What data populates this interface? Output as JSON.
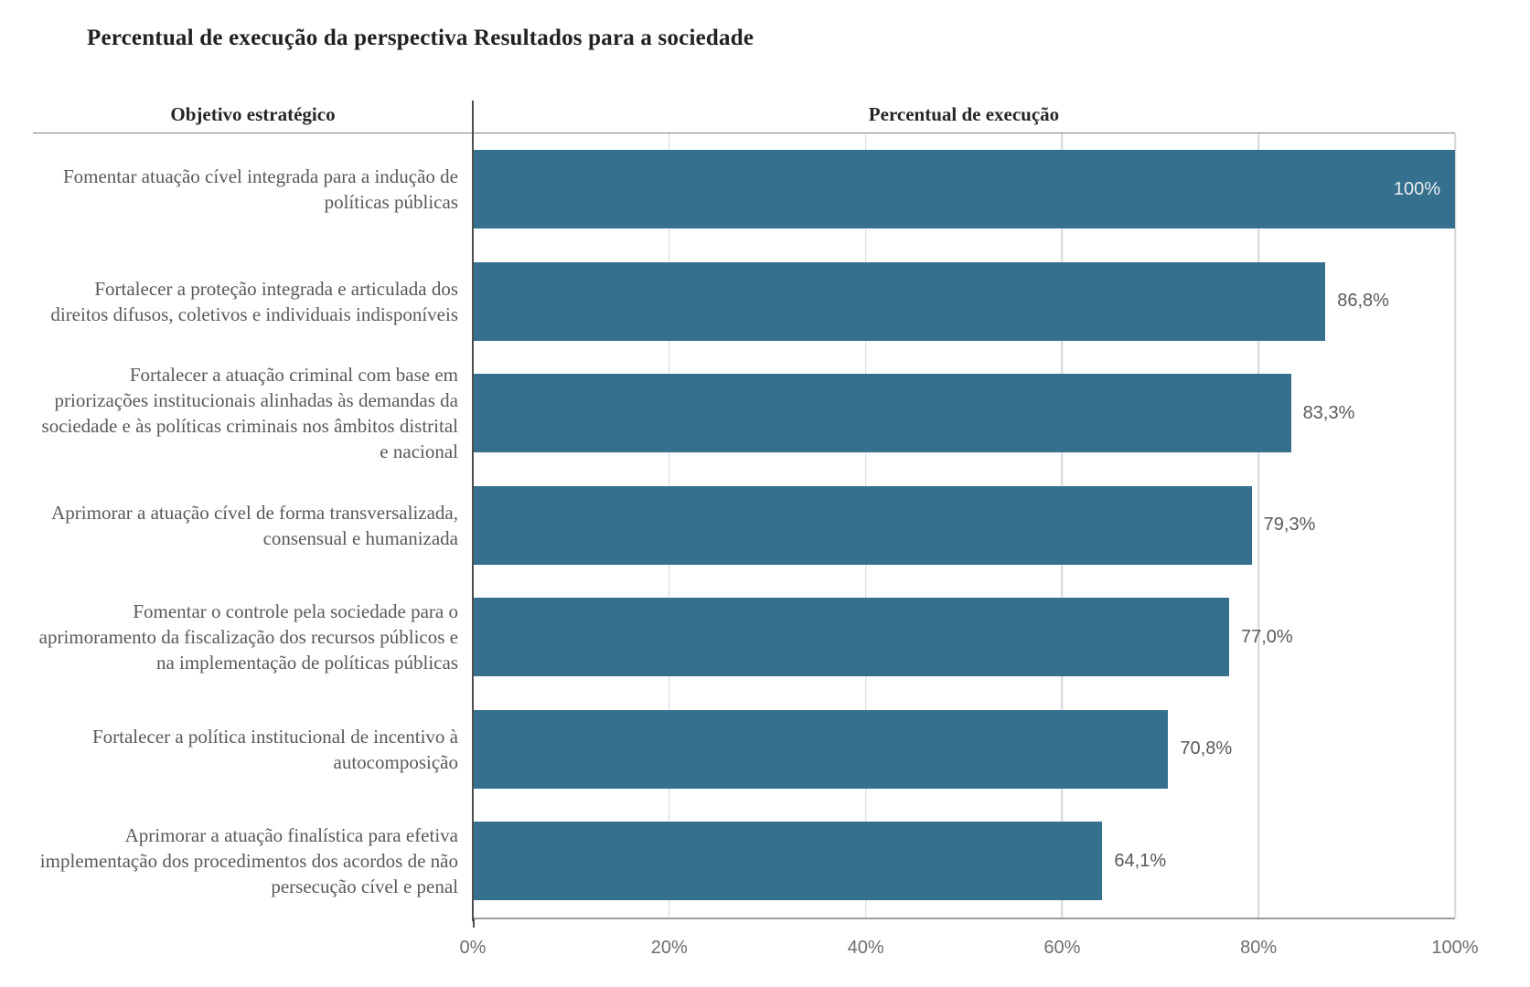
{
  "title": "Percentual de execução da perspectiva Resultados para a sociedade",
  "table_headers": {
    "label_column": "Objetivo estratégico",
    "value_column": "Percentual de execução"
  },
  "chart_data": {
    "type": "bar",
    "orientation": "horizontal",
    "title": "Percentual de execução da perspectiva Resultados para a sociedade",
    "xlabel": "Percentual de execução",
    "ylabel": "Objetivo estratégico",
    "categories": [
      "Fomentar atuação cível integrada para a indução de políticas públicas",
      "Fortalecer a proteção integrada e articulada dos direitos difusos, coletivos e individuais indisponíveis",
      "Fortalecer a atuação criminal com base em priorizações institucionais alinhadas às demandas da sociedade e às políticas criminais nos âmbitos distrital e nacional",
      "Aprimorar a atuação cível de forma transversalizada, consensual e humanizada",
      "Fomentar o controle pela sociedade para o aprimoramento da fiscalização dos recursos públicos e na implementação de políticas públicas",
      "Fortalecer a política institucional de incentivo à autocomposição",
      "Aprimorar a atuação finalística para efetiva implementação dos procedimentos dos acordos de não persecução cível e penal"
    ],
    "values": [
      100,
      86.8,
      83.3,
      79.3,
      77.0,
      70.8,
      64.1
    ],
    "value_labels": [
      "100%",
      "86,8%",
      "83,3%",
      "79,3%",
      "77,0%",
      "70,8%",
      "64,1%"
    ],
    "xlim": [
      0,
      100
    ],
    "x_ticks": [
      "0%",
      "20%",
      "40%",
      "60%",
      "80%",
      "100%"
    ],
    "grid": "vertical",
    "legend": "none",
    "bar_color": "#36708f"
  },
  "style_colors": {
    "bar_color": "#36708f",
    "grid_color": "#d6d6d6",
    "axis_color": "#9b9b9b",
    "divider_color": "#4f4f4f",
    "header_line_color": "#7f7f7f",
    "text_color": "#595959",
    "tick_color": "#6e6e6e",
    "title_color": "#212121",
    "value_inside_color": "#e9eef1"
  }
}
